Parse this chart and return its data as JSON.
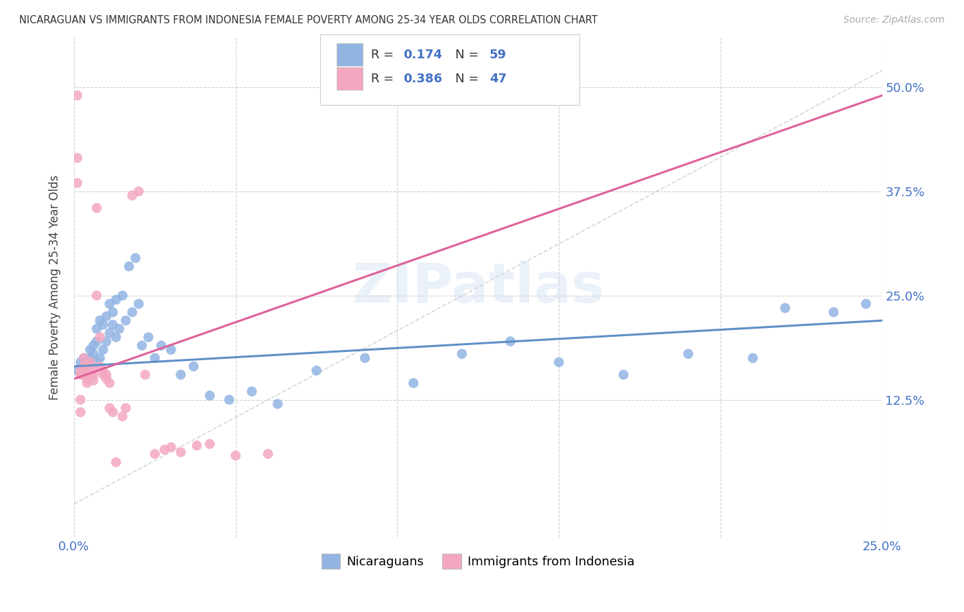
{
  "title": "NICARAGUAN VS IMMIGRANTS FROM INDONESIA FEMALE POVERTY AMONG 25-34 YEAR OLDS CORRELATION CHART",
  "source": "Source: ZipAtlas.com",
  "ylabel": "Female Poverty Among 25-34 Year Olds",
  "yticks_labels": [
    "50.0%",
    "37.5%",
    "25.0%",
    "12.5%"
  ],
  "ytick_values": [
    0.5,
    0.375,
    0.25,
    0.125
  ],
  "xlim": [
    0.0,
    0.25
  ],
  "ylim": [
    -0.04,
    0.56
  ],
  "blue_color": "#92b4e3",
  "pink_color": "#f4a8c0",
  "trendline_color_blue": "#6090c8",
  "trendline_color_pink": "#e0609a",
  "diagonal_color": "#cccccc",
  "background_color": "#ffffff",
  "watermark": "ZIPatlas",
  "blue_scatter_x": [
    0.001,
    0.002,
    0.002,
    0.003,
    0.003,
    0.003,
    0.004,
    0.004,
    0.004,
    0.005,
    0.005,
    0.005,
    0.006,
    0.006,
    0.007,
    0.007,
    0.007,
    0.008,
    0.008,
    0.009,
    0.009,
    0.01,
    0.01,
    0.011,
    0.011,
    0.012,
    0.012,
    0.013,
    0.013,
    0.014,
    0.015,
    0.016,
    0.017,
    0.018,
    0.019,
    0.02,
    0.021,
    0.023,
    0.025,
    0.027,
    0.03,
    0.033,
    0.037,
    0.042,
    0.048,
    0.055,
    0.063,
    0.075,
    0.09,
    0.105,
    0.12,
    0.135,
    0.15,
    0.17,
    0.19,
    0.21,
    0.22,
    0.235,
    0.245
  ],
  "blue_scatter_y": [
    0.16,
    0.158,
    0.17,
    0.155,
    0.165,
    0.175,
    0.162,
    0.172,
    0.168,
    0.175,
    0.185,
    0.165,
    0.18,
    0.19,
    0.17,
    0.195,
    0.21,
    0.175,
    0.22,
    0.185,
    0.215,
    0.195,
    0.225,
    0.205,
    0.24,
    0.215,
    0.23,
    0.2,
    0.245,
    0.21,
    0.25,
    0.22,
    0.285,
    0.23,
    0.295,
    0.24,
    0.19,
    0.2,
    0.175,
    0.19,
    0.185,
    0.155,
    0.165,
    0.13,
    0.125,
    0.135,
    0.12,
    0.16,
    0.175,
    0.145,
    0.18,
    0.195,
    0.17,
    0.155,
    0.18,
    0.175,
    0.235,
    0.23,
    0.24
  ],
  "pink_scatter_x": [
    0.001,
    0.001,
    0.001,
    0.002,
    0.002,
    0.002,
    0.002,
    0.003,
    0.003,
    0.003,
    0.003,
    0.004,
    0.004,
    0.004,
    0.004,
    0.005,
    0.005,
    0.005,
    0.005,
    0.006,
    0.006,
    0.006,
    0.007,
    0.007,
    0.008,
    0.008,
    0.009,
    0.009,
    0.01,
    0.01,
    0.011,
    0.011,
    0.012,
    0.013,
    0.015,
    0.016,
    0.018,
    0.02,
    0.022,
    0.025,
    0.028,
    0.03,
    0.033,
    0.038,
    0.042,
    0.05,
    0.06
  ],
  "pink_scatter_y": [
    0.49,
    0.415,
    0.385,
    0.16,
    0.155,
    0.125,
    0.11,
    0.155,
    0.16,
    0.175,
    0.165,
    0.15,
    0.145,
    0.165,
    0.155,
    0.158,
    0.165,
    0.17,
    0.155,
    0.148,
    0.155,
    0.16,
    0.355,
    0.25,
    0.2,
    0.165,
    0.155,
    0.16,
    0.155,
    0.15,
    0.145,
    0.115,
    0.11,
    0.05,
    0.105,
    0.115,
    0.37,
    0.375,
    0.155,
    0.06,
    0.065,
    0.068,
    0.062,
    0.07,
    0.072,
    0.058,
    0.06
  ],
  "blue_trend_x": [
    0.0,
    0.25
  ],
  "blue_trend_y": [
    0.165,
    0.22
  ],
  "pink_trend_x": [
    0.0,
    0.25
  ],
  "pink_trend_y": [
    0.15,
    0.49
  ]
}
